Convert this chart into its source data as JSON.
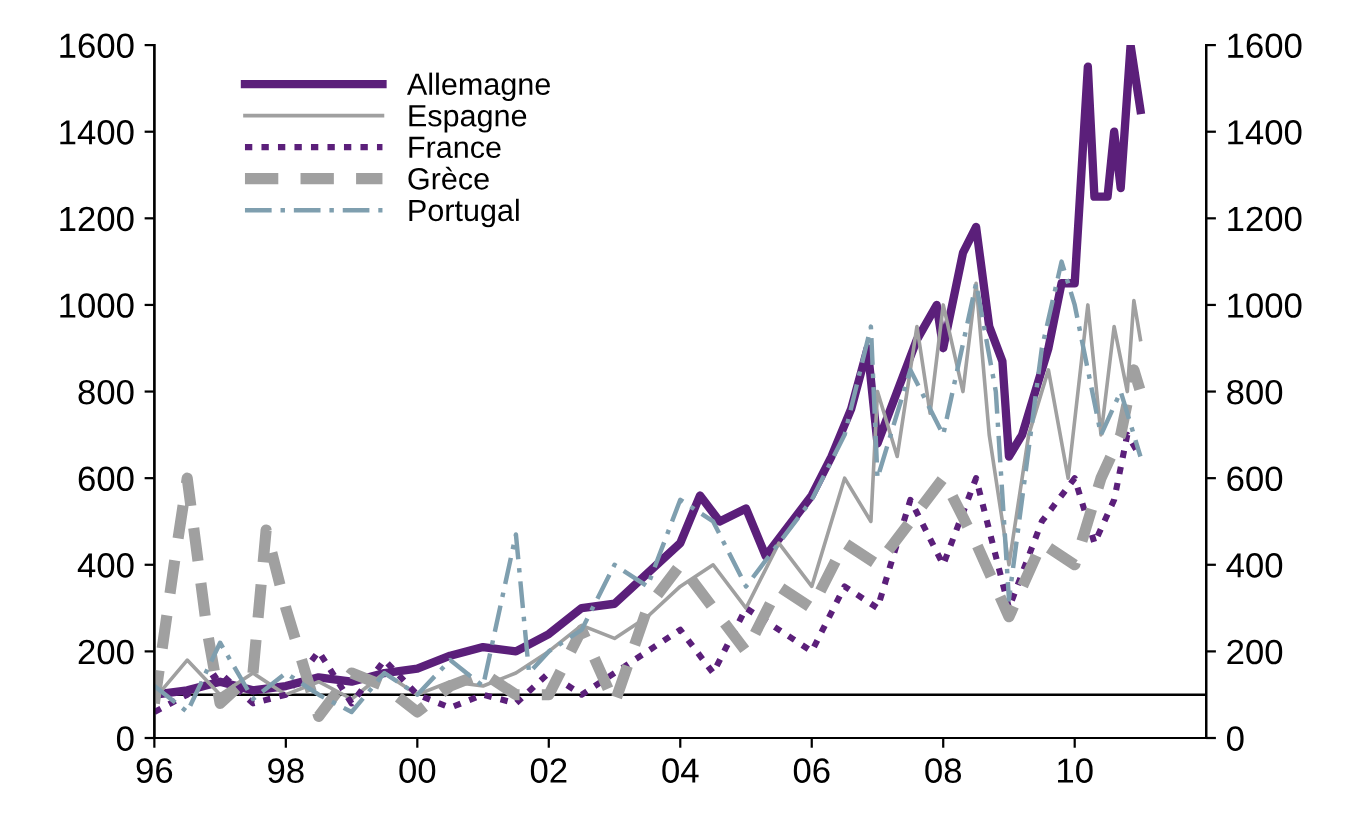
{
  "chart_data": {
    "type": "line",
    "xlim": [
      1996,
      2012
    ],
    "ylim": [
      0,
      1600
    ],
    "y2lim": [
      0,
      1600
    ],
    "xticks": [
      {
        "value": 1996,
        "label": "96"
      },
      {
        "value": 1998,
        "label": "98"
      },
      {
        "value": 2000,
        "label": "00"
      },
      {
        "value": 2002,
        "label": "02"
      },
      {
        "value": 2004,
        "label": "04"
      },
      {
        "value": 2006,
        "label": "06"
      },
      {
        "value": 2008,
        "label": "08"
      },
      {
        "value": 2010,
        "label": "10"
      }
    ],
    "yticks": [
      0,
      200,
      400,
      600,
      800,
      1000,
      1200,
      1400,
      1600
    ],
    "y2ticks": [
      0,
      200,
      400,
      600,
      800,
      1000,
      1200,
      1400,
      1600
    ],
    "legend": "top left",
    "grid": false,
    "marker": "none",
    "ref_lines": [
      {
        "axis": "y",
        "value": 100,
        "color": "#000000"
      }
    ],
    "series": [
      {
        "name": "Allemagne",
        "color": "#5b1f7a",
        "line_style": "solid",
        "x": [
          1996,
          1996.5,
          1997,
          1997.5,
          1998,
          1998.5,
          1999,
          1999.5,
          2000,
          2000.5,
          2001,
          2001.5,
          2002,
          2002.5,
          2003,
          2003.5,
          2004,
          2004.3,
          2004.6,
          2005,
          2005.3,
          2005.6,
          2006,
          2006.3,
          2006.6,
          2006.85,
          2007,
          2007.3,
          2007.6,
          2007.9,
          2008,
          2008.3,
          2008.5,
          2008.7,
          2008.9,
          2009,
          2009.2,
          2009.4,
          2009.6,
          2009.8,
          2010,
          2010.2,
          2010.3,
          2010.5,
          2010.6,
          2010.7,
          2010.85,
          2011
        ],
        "values": [
          100,
          110,
          130,
          110,
          120,
          140,
          130,
          150,
          160,
          190,
          210,
          200,
          240,
          300,
          310,
          380,
          450,
          560,
          500,
          530,
          420,
          480,
          560,
          650,
          760,
          900,
          680,
          800,
          920,
          1000,
          900,
          1120,
          1180,
          950,
          870,
          650,
          700,
          800,
          900,
          1050,
          1050,
          1550,
          1250,
          1250,
          1400,
          1270,
          1600,
          1450
        ]
      },
      {
        "name": "Espagne",
        "color": "#a0a0a0",
        "line_style": "solid",
        "x": [
          1996,
          1996.5,
          1997,
          1997.5,
          1998,
          1998.5,
          1999,
          1999.5,
          2000,
          2000.5,
          2001,
          2001.5,
          2002,
          2002.5,
          2003,
          2003.5,
          2004,
          2004.5,
          2005,
          2005.5,
          2006,
          2006.5,
          2006.9,
          2007,
          2007.3,
          2007.6,
          2007.8,
          2008,
          2008.3,
          2008.5,
          2008.7,
          2009,
          2009.3,
          2009.6,
          2009.9,
          2010.2,
          2010.4,
          2010.6,
          2010.8,
          2010.9,
          2011
        ],
        "values": [
          90,
          180,
          100,
          150,
          100,
          130,
          90,
          150,
          100,
          130,
          120,
          150,
          200,
          260,
          230,
          280,
          350,
          400,
          300,
          450,
          350,
          600,
          500,
          800,
          650,
          950,
          750,
          1000,
          800,
          1050,
          700,
          400,
          700,
          850,
          600,
          1000,
          700,
          950,
          800,
          1010,
          920
        ]
      },
      {
        "name": "France",
        "color": "#5b1f7a",
        "line_style": "dotted",
        "x": [
          1996,
          1996.5,
          1997,
          1997.5,
          1998,
          1998.5,
          1999,
          1999.5,
          2000,
          2000.5,
          2001,
          2001.5,
          2002,
          2002.5,
          2003,
          2003.5,
          2004,
          2004.5,
          2005,
          2005.5,
          2006,
          2006.5,
          2007,
          2007.5,
          2008,
          2008.5,
          2009,
          2009.5,
          2010,
          2010.3,
          2010.6,
          2010.8,
          2011
        ],
        "values": [
          60,
          100,
          150,
          80,
          100,
          200,
          80,
          180,
          100,
          70,
          100,
          80,
          150,
          100,
          150,
          200,
          250,
          150,
          300,
          250,
          200,
          350,
          300,
          550,
          400,
          600,
          300,
          500,
          600,
          450,
          550,
          700,
          650
        ]
      },
      {
        "name": "Grèce",
        "color": "#a0a0a0",
        "line_style": "dashed",
        "x": [
          1996,
          1996.3,
          1996.5,
          1996.8,
          1997,
          1997.5,
          1997.7,
          1998,
          1998.5,
          1999,
          1999.5,
          2000,
          2000.5,
          2001,
          2001.5,
          2002,
          2002.5,
          2003,
          2003.5,
          2004,
          2004.5,
          2005,
          2005.5,
          2006,
          2006.5,
          2007,
          2007.5,
          2008,
          2008.5,
          2009,
          2009.5,
          2010,
          2010.4,
          2010.7,
          2010.9,
          2011
        ],
        "values": [
          80,
          400,
          600,
          250,
          80,
          150,
          480,
          300,
          50,
          150,
          120,
          60,
          120,
          150,
          100,
          100,
          250,
          80,
          300,
          400,
          300,
          200,
          350,
          300,
          450,
          400,
          500,
          600,
          450,
          280,
          450,
          400,
          600,
          700,
          850,
          800
        ]
      },
      {
        "name": "Portugal",
        "color": "#7f9faf",
        "line_style": "dashdot",
        "x": [
          1996,
          1996.5,
          1997,
          1997.5,
          1998,
          1998.5,
          1999,
          1999.5,
          2000,
          2000.5,
          2001,
          2001.5,
          2001.7,
          2002,
          2002.5,
          2003,
          2003.5,
          2004,
          2004.5,
          2005,
          2005.5,
          2006,
          2006.5,
          2006.9,
          2007,
          2007.5,
          2008,
          2008.5,
          2008.8,
          2009,
          2009.5,
          2009.8,
          2010,
          2010.4,
          2010.7,
          2011
        ],
        "values": [
          120,
          60,
          220,
          90,
          150,
          100,
          60,
          150,
          100,
          180,
          120,
          470,
          150,
          200,
          250,
          400,
          350,
          550,
          500,
          350,
          450,
          550,
          700,
          950,
          600,
          850,
          700,
          1050,
          800,
          320,
          900,
          1100,
          1000,
          700,
          800,
          650
        ]
      }
    ]
  }
}
